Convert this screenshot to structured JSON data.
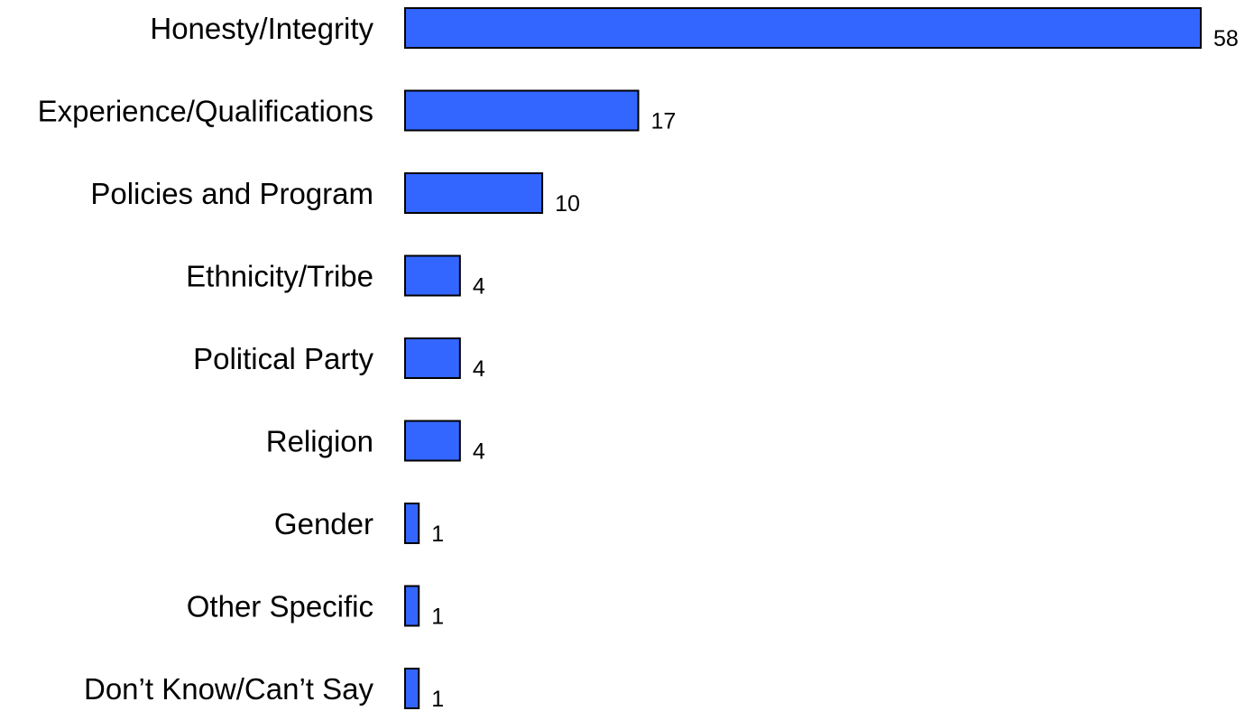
{
  "chart_data": {
    "type": "bar",
    "orientation": "horizontal",
    "categories": [
      "Honesty/Integrity",
      "Experience/Qualifications",
      "Policies and Program",
      "Ethnicity/Tribe",
      "Political Party",
      "Religion",
      "Gender",
      "Other Specific",
      "Don’t Know/Can’t Say"
    ],
    "values": [
      58,
      17,
      10,
      4,
      4,
      4,
      1,
      1,
      1
    ],
    "data_labels": [
      "58",
      "17",
      "10",
      "4",
      "4",
      "4",
      "1",
      "1",
      "1"
    ],
    "bar_color": "#3366FF",
    "bar_outline_color": "#000000",
    "xlim": [
      0,
      58
    ],
    "grid": false,
    "legend": "none"
  }
}
